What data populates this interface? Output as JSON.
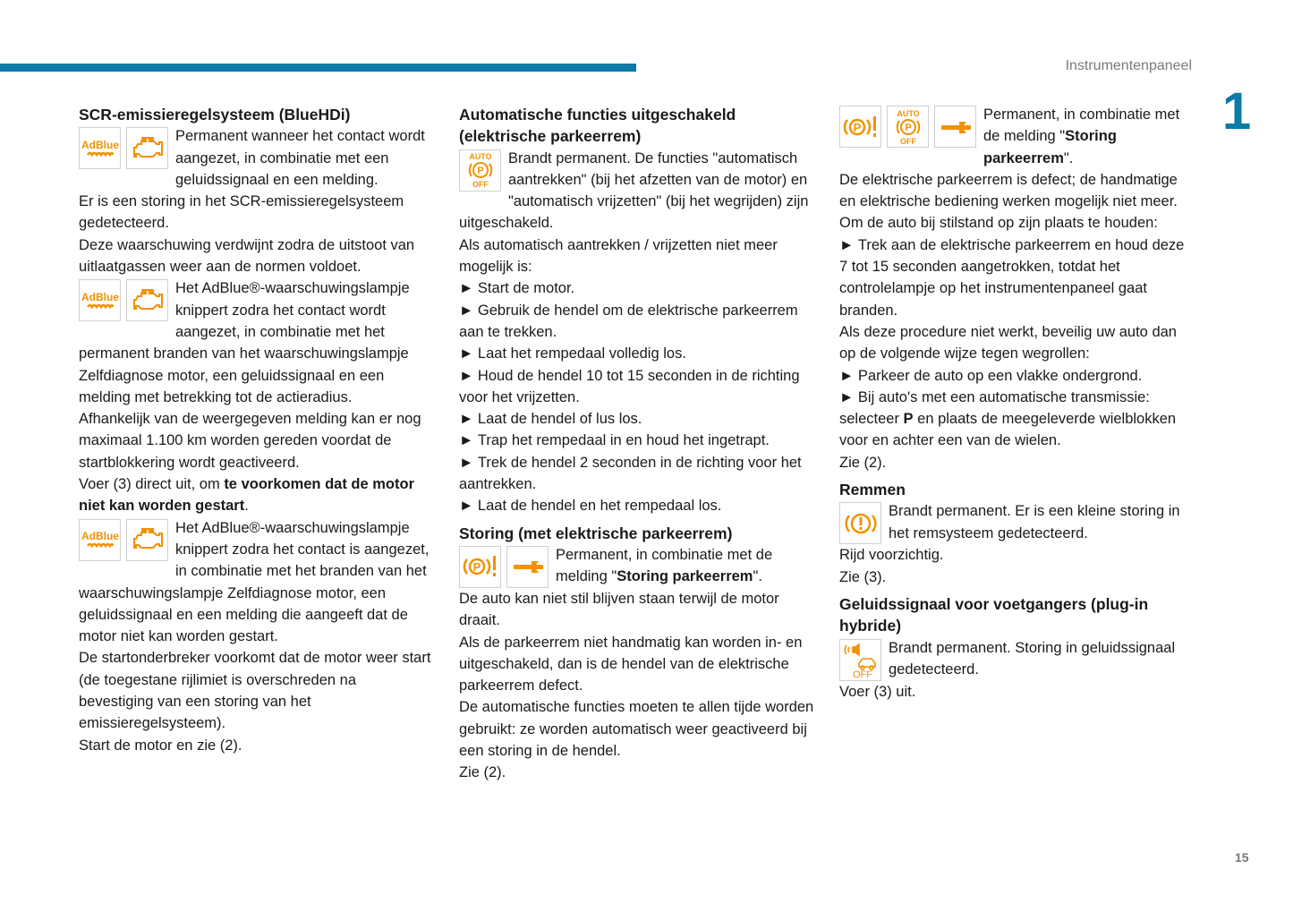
{
  "header": {
    "section_title": "Instrumentenpaneel",
    "chapter_number": "1",
    "page_number": "15",
    "accent_color": "#0c7aa6",
    "icon_color": "#f29100"
  },
  "columns": [
    {
      "blocks": [
        {
          "type": "heading",
          "text": "SCR-emissieregelsysteem (BlueHDi)"
        },
        {
          "type": "iconpara",
          "icons": [
            "adblue-icon",
            "engine-icon"
          ],
          "runs": [
            {
              "t": "Permanent wanneer het contact wordt aangezet, in combinatie met een geluidssignaal en een melding."
            }
          ]
        },
        {
          "type": "para",
          "runs": [
            {
              "t": "Er is een storing in het SCR-emissieregelsysteem gedetecteerd."
            }
          ]
        },
        {
          "type": "para",
          "runs": [
            {
              "t": "Deze waarschuwing verdwijnt zodra de uitstoot van uitlaatgassen weer aan de normen voldoet."
            }
          ]
        },
        {
          "type": "iconpara",
          "icons": [
            "adblue-icon",
            "engine-icon"
          ],
          "runs": [
            {
              "t": "Het AdBlue®-waarschuwingslampje knippert zodra het contact wordt aangezet, in combinatie met het permanent branden van het waarschuwingslampje Zelfdiagnose motor, een geluidssignaal en een melding met betrekking tot de actieradius."
            }
          ]
        },
        {
          "type": "para",
          "runs": [
            {
              "t": "Afhankelijk van de weergegeven melding kan er nog maximaal 1.100 km worden gereden voordat de startblokkering wordt geactiveerd."
            }
          ]
        },
        {
          "type": "para",
          "runs": [
            {
              "t": "Voer (3) direct uit, om "
            },
            {
              "t": "te voorkomen dat de motor niet kan worden gestart",
              "b": true
            },
            {
              "t": "."
            }
          ]
        },
        {
          "type": "iconpara",
          "icons": [
            "adblue-icon",
            "engine-icon"
          ],
          "runs": [
            {
              "t": "Het AdBlue®-waarschuwingslampje knippert zodra het contact is aangezet, in combinatie met het branden van het waarschuwingslampje Zelfdiagnose motor, een geluidssignaal en een melding die aangeeft dat de motor niet kan worden gestart."
            }
          ]
        },
        {
          "type": "para",
          "runs": [
            {
              "t": "De startonderbreker voorkomt dat de motor weer start (de toegestane rijlimiet is overschreden na bevestiging van een storing van het emissieregelsysteem)."
            }
          ]
        },
        {
          "type": "para",
          "runs": [
            {
              "t": "Start de motor en zie (2)."
            }
          ]
        }
      ]
    },
    {
      "blocks": [
        {
          "type": "heading",
          "text": "Automatische functies uitgeschakeld (elektrische parkeerrem)"
        },
        {
          "type": "iconpara",
          "icons": [
            "parking-auto-off-icon"
          ],
          "runs": [
            {
              "t": "Brandt permanent. De functies \"automatisch aantrekken\" (bij het afzetten van de motor) en \"automatisch vrijzetten\" (bij het wegrijden) zijn uitgeschakeld."
            }
          ]
        },
        {
          "type": "para",
          "runs": [
            {
              "t": "Als automatisch aantrekken / vrijzetten niet meer mogelijk is:"
            }
          ]
        },
        {
          "type": "bullet",
          "runs": [
            {
              "t": "Start de motor."
            }
          ]
        },
        {
          "type": "bullet",
          "runs": [
            {
              "t": "Gebruik de hendel om de elektrische parkeerrem aan te trekken."
            }
          ]
        },
        {
          "type": "bullet",
          "runs": [
            {
              "t": "Laat het rempedaal volledig los."
            }
          ]
        },
        {
          "type": "bullet",
          "runs": [
            {
              "t": "Houd de hendel 10 tot 15 seconden in de richting voor het vrijzetten."
            }
          ]
        },
        {
          "type": "bullet",
          "runs": [
            {
              "t": "Laat de hendel of lus los."
            }
          ]
        },
        {
          "type": "bullet",
          "runs": [
            {
              "t": "Trap het rempedaal in en houd het ingetrapt."
            }
          ]
        },
        {
          "type": "bullet",
          "runs": [
            {
              "t": "Trek de hendel 2 seconden in de richting voor het aantrekken."
            }
          ]
        },
        {
          "type": "bullet",
          "runs": [
            {
              "t": "Laat de hendel en het rempedaal los."
            }
          ]
        },
        {
          "type": "heading",
          "gap": true,
          "text": "Storing (met elektrische parkeerrem)"
        },
        {
          "type": "iconpara",
          "icons": [
            "parking-warning-icon",
            "wrench-icon"
          ],
          "runs": [
            {
              "t": "Permanent, in combinatie met de melding \""
            },
            {
              "t": "Storing parkeerrem",
              "b": true
            },
            {
              "t": "\"."
            }
          ]
        },
        {
          "type": "para",
          "runs": [
            {
              "t": "De auto kan niet stil blijven staan terwijl de motor draait."
            }
          ]
        },
        {
          "type": "para",
          "runs": [
            {
              "t": "Als de parkeerrem niet handmatig kan worden in- en uitgeschakeld, dan is de hendel van de elektrische parkeerrem defect."
            }
          ]
        },
        {
          "type": "para",
          "runs": [
            {
              "t": "De automatische functies moeten te allen tijde worden gebruikt: ze worden automatisch weer geactiveerd bij een storing in de hendel."
            }
          ]
        },
        {
          "type": "para",
          "runs": [
            {
              "t": "Zie (2)."
            }
          ]
        }
      ]
    },
    {
      "blocks": [
        {
          "type": "iconpara",
          "icons": [
            "parking-warning-icon",
            "parking-auto-off-icon",
            "wrench-icon"
          ],
          "runs": [
            {
              "t": "Permanent, in combinatie met de melding \""
            },
            {
              "t": "Storing parkeerrem",
              "b": true
            },
            {
              "t": "\"."
            }
          ]
        },
        {
          "type": "para",
          "runs": [
            {
              "t": "De elektrische parkeerrem is defect; de handmatige en elektrische bediening werken mogelijk niet meer."
            }
          ]
        },
        {
          "type": "para",
          "runs": [
            {
              "t": "Om de auto bij stilstand op zijn plaats te houden:"
            }
          ]
        },
        {
          "type": "bullet",
          "runs": [
            {
              "t": "Trek aan de elektrische parkeerrem en houd deze 7 tot 15 seconden aangetrokken, totdat het controlelampje op het instrumentenpaneel gaat branden."
            }
          ]
        },
        {
          "type": "para",
          "runs": [
            {
              "t": "Als deze procedure niet werkt, beveilig uw auto dan op de volgende wijze tegen wegrollen:"
            }
          ]
        },
        {
          "type": "bullet",
          "runs": [
            {
              "t": "Parkeer de auto op een vlakke ondergrond."
            }
          ]
        },
        {
          "type": "bullet",
          "runs": [
            {
              "t": "Bij auto's met een automatische transmissie: selecteer "
            },
            {
              "t": "P",
              "b": true
            },
            {
              "t": " en plaats de meegeleverde wielblokken voor en achter een van de wielen."
            }
          ]
        },
        {
          "type": "para",
          "runs": [
            {
              "t": "Zie (2)."
            }
          ]
        },
        {
          "type": "heading",
          "gap": true,
          "text": "Remmen"
        },
        {
          "type": "iconpara",
          "icons": [
            "brake-warning-icon"
          ],
          "runs": [
            {
              "t": "Brandt permanent. Er is een kleine storing in het remsysteem gedetecteerd."
            }
          ]
        },
        {
          "type": "para",
          "runs": [
            {
              "t": "Rijd voorzichtig."
            }
          ]
        },
        {
          "type": "para",
          "runs": [
            {
              "t": "Zie (3)."
            }
          ]
        },
        {
          "type": "heading",
          "gap": true,
          "text": "Geluidssignaal voor voetgangers (plug-in hybride)"
        },
        {
          "type": "iconpara",
          "icons": [
            "pedestrian-sound-off-icon"
          ],
          "runs": [
            {
              "t": "Brandt permanent. Storing in geluidssignaal gedetecteerd."
            }
          ]
        },
        {
          "type": "para",
          "runs": [
            {
              "t": "Voer (3) uit."
            }
          ]
        }
      ]
    }
  ]
}
